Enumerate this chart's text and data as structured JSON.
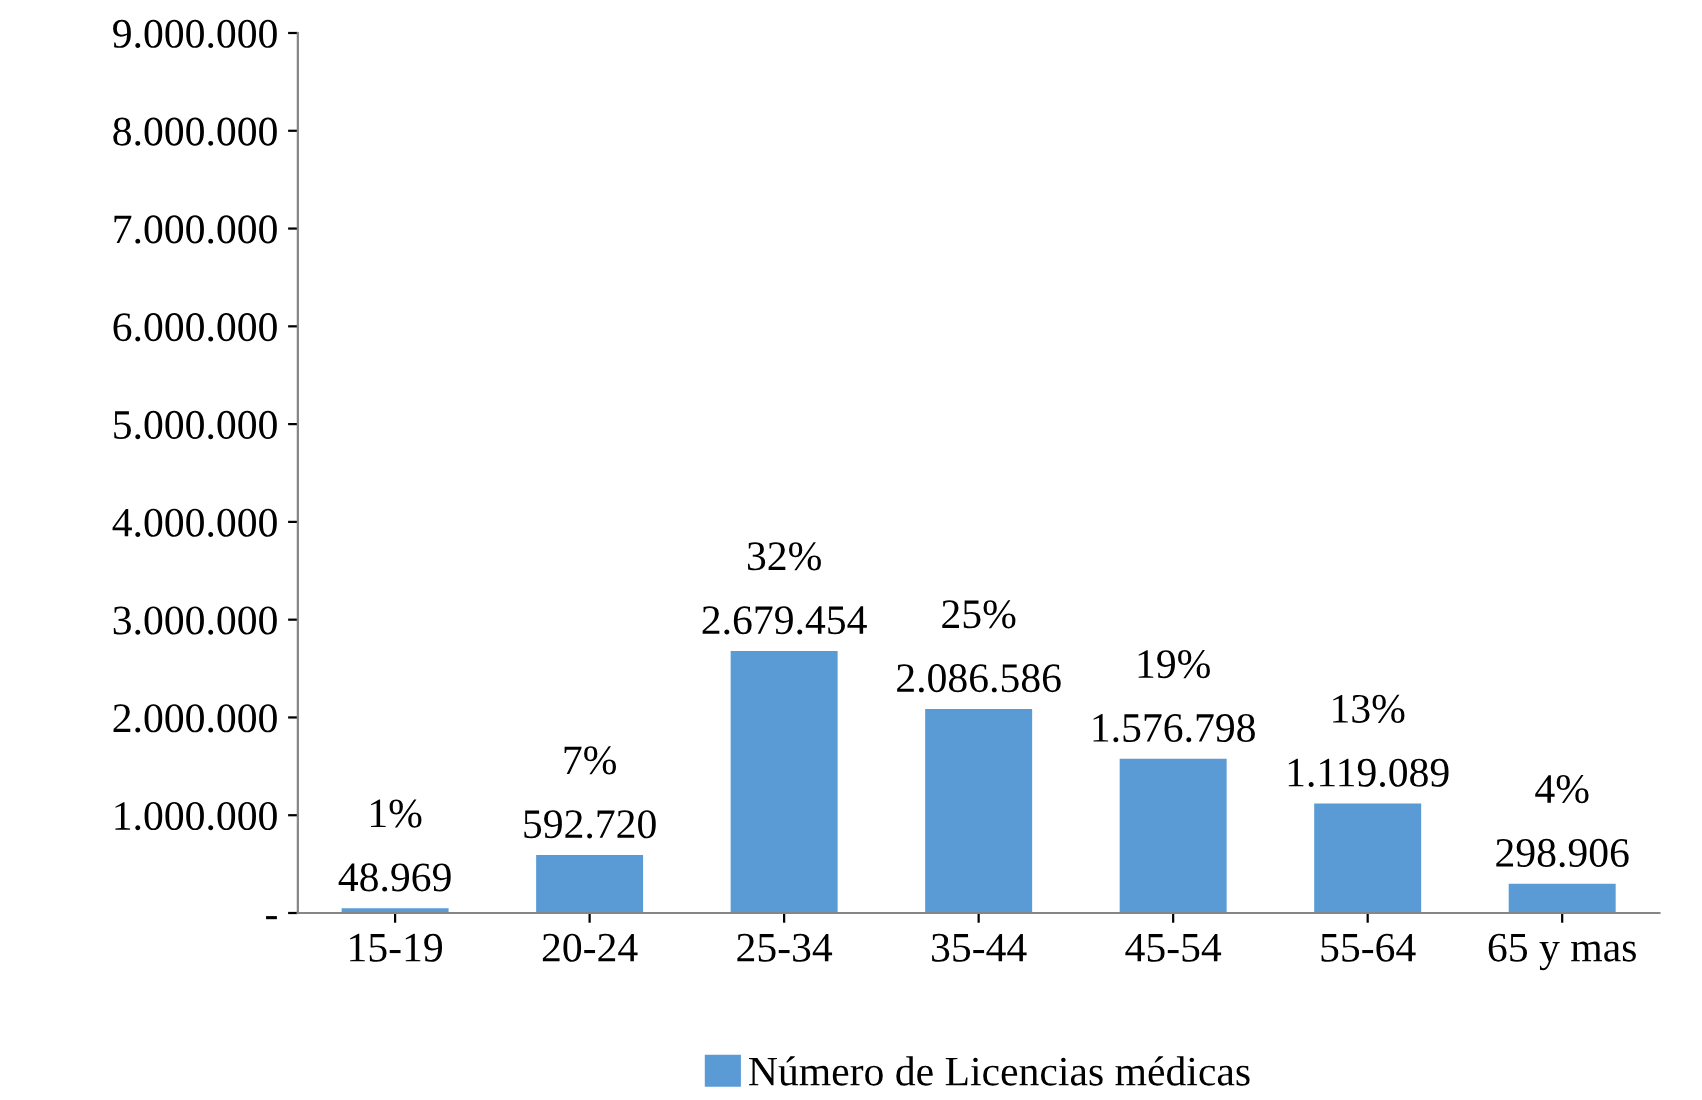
{
  "chart_data": {
    "type": "bar",
    "categories": [
      "15-19",
      "20-24",
      "25-34",
      "35-44",
      "45-54",
      "55-64",
      "65 y mas"
    ],
    "series": [
      {
        "name": "Número de Licencias médicas",
        "color": "#5b9bd5",
        "values": [
          48969,
          592720,
          2679454,
          2086586,
          1576798,
          1119089,
          298906
        ],
        "value_labels": [
          "48.969",
          "592.720",
          "2.679.454",
          "2.086.586",
          "1.576.798",
          "1.119.089",
          "298.906"
        ]
      }
    ],
    "annotations": [
      {
        "text": "1%",
        "x": "15-19",
        "y": 48969
      },
      {
        "text": "7%",
        "x": "20-24",
        "y": 592720
      },
      {
        "text": "32%",
        "x": "25-34",
        "y": 2679454
      },
      {
        "text": "25%",
        "x": "35-44",
        "y": 2086586
      },
      {
        "text": "19%",
        "x": "45-54",
        "y": 1576798
      },
      {
        "text": "13%",
        "x": "55-64",
        "y": 1119089
      },
      {
        "text": "4%",
        "x": "65 y mas",
        "y": 298906
      }
    ],
    "ylim": [
      0,
      9000000
    ],
    "yticks": [
      {
        "value": 0,
        "label": "-"
      },
      {
        "value": 1000000,
        "label": "1.000.000"
      },
      {
        "value": 2000000,
        "label": "2.000.000"
      },
      {
        "value": 3000000,
        "label": "3.000.000"
      },
      {
        "value": 4000000,
        "label": "4.000.000"
      },
      {
        "value": 5000000,
        "label": "5.000.000"
      },
      {
        "value": 6000000,
        "label": "6.000.000"
      },
      {
        "value": 7000000,
        "label": "7.000.000"
      },
      {
        "value": 8000000,
        "label": "8.000.000"
      },
      {
        "value": 9000000,
        "label": "9.000.000"
      }
    ],
    "grid": false,
    "legend": "bottom"
  }
}
